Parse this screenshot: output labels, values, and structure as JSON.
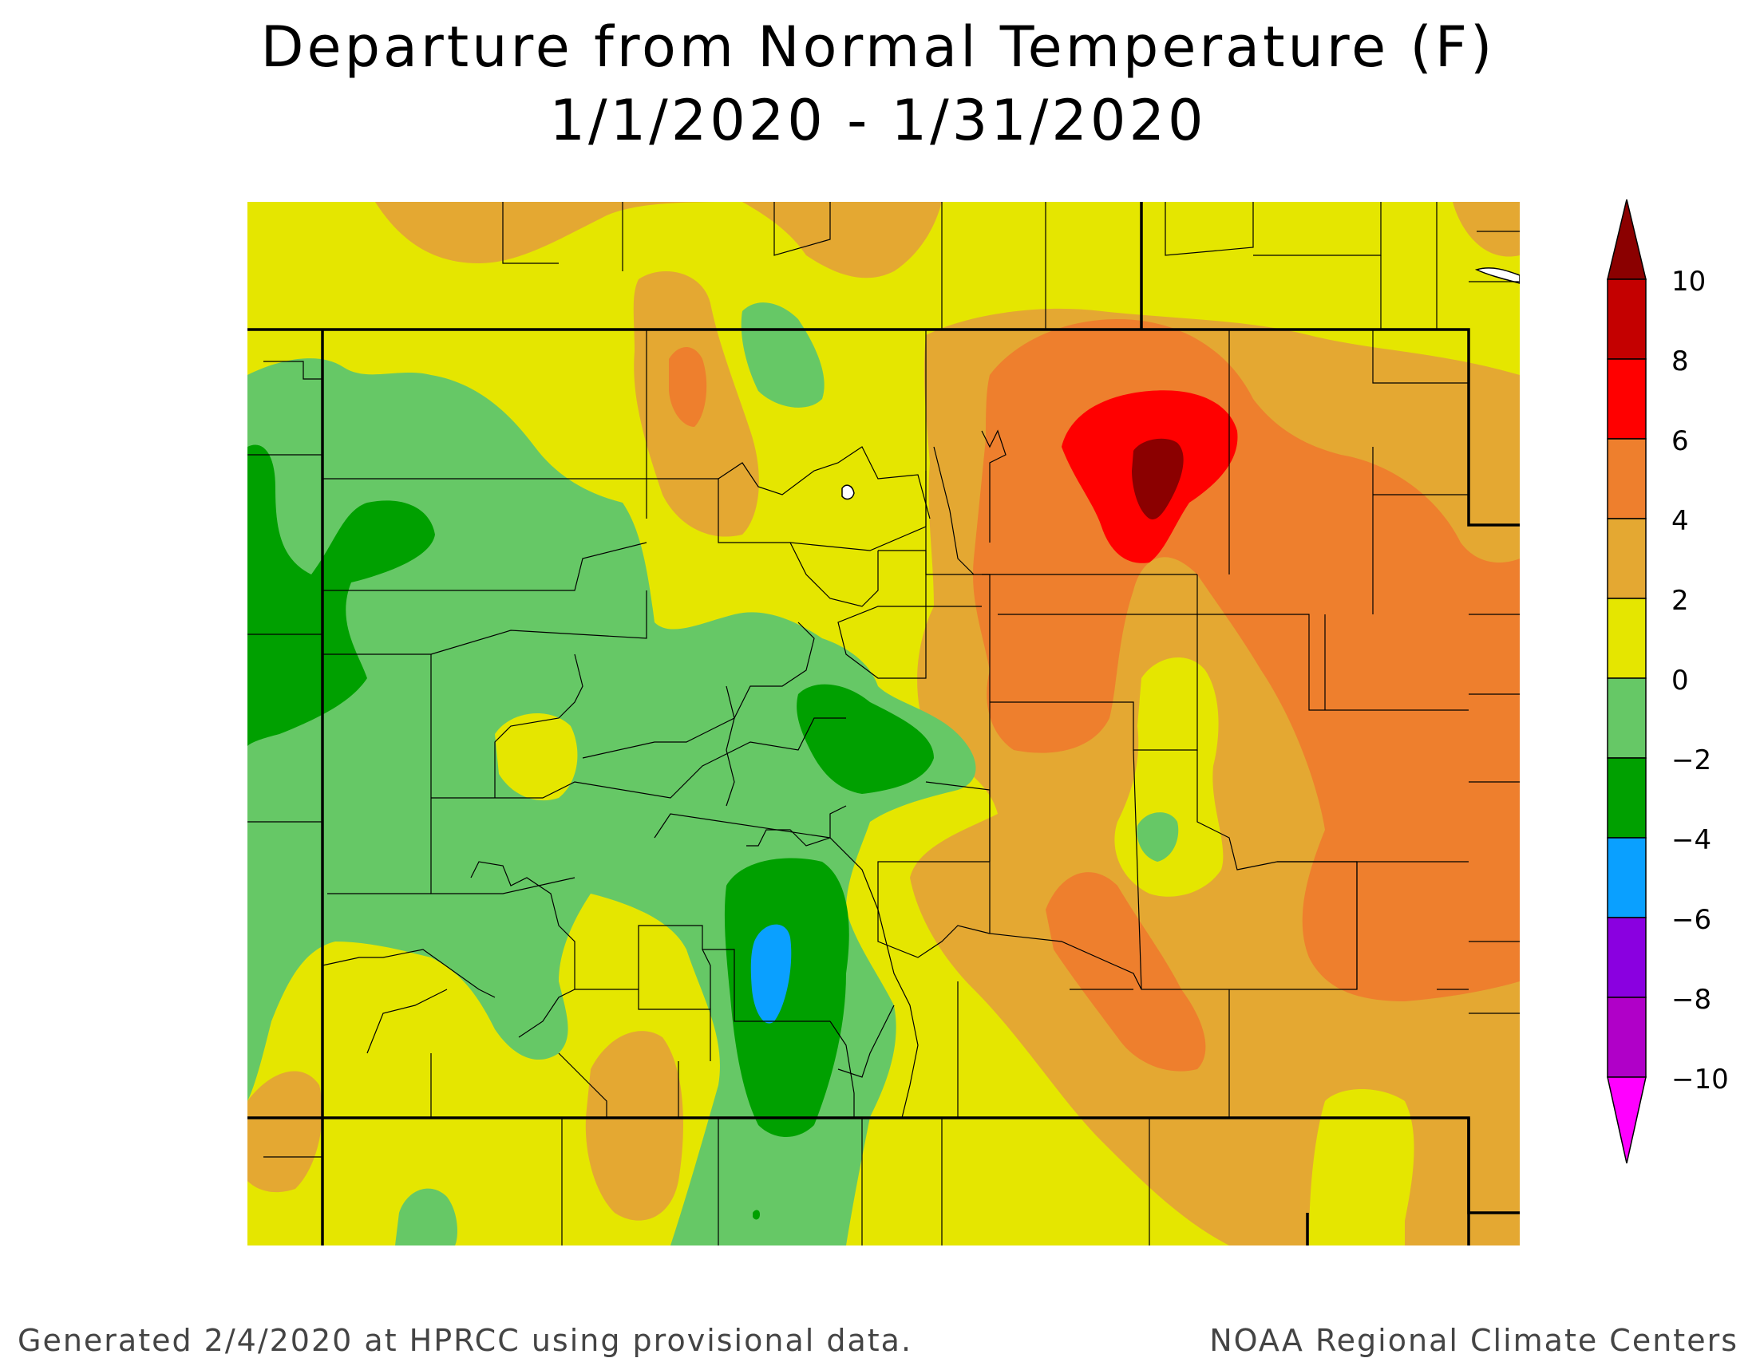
{
  "title": "Departure from Normal Temperature (F)",
  "subtitle": "1/1/2020 - 1/31/2020",
  "footer": {
    "left": "Generated 2/4/2020 at HPRCC using provisional data.",
    "right": "NOAA Regional Climate Centers"
  },
  "legend": {
    "labels": [
      "10",
      "8",
      "6",
      "4",
      "2",
      "0",
      "−2",
      "−4",
      "−6",
      "−8",
      "−10"
    ],
    "bins": [
      {
        "range": "> 10",
        "color": "#8B0000"
      },
      {
        "range": "8 to 10",
        "color": "#C40000"
      },
      {
        "range": "6 to 8",
        "color": "#FF0000"
      },
      {
        "range": "4 to 6",
        "color": "#EE7F2D"
      },
      {
        "range": "2 to 4",
        "color": "#E4A832"
      },
      {
        "range": "0 to 2",
        "color": "#E5E600"
      },
      {
        "range": "-2 to 0",
        "color": "#66C866"
      },
      {
        "range": "-4 to -2",
        "color": "#00A000"
      },
      {
        "range": "-6 to -4",
        "color": "#0AA0FF"
      },
      {
        "range": "-8 to -6",
        "color": "#8A00E0"
      },
      {
        "range": "-10 to -8",
        "color": "#B000C8"
      },
      {
        "range": "< -10",
        "color": "#FF00FF"
      }
    ]
  },
  "colors": {
    "warm_max": "#8B0000",
    "warm_high": "#FF0000",
    "orange": "#EE7F2D",
    "light_orange": "#E4A832",
    "yellow": "#E5E600",
    "light_green": "#66C866",
    "green": "#00A000",
    "blue": "#0AA0FF"
  }
}
